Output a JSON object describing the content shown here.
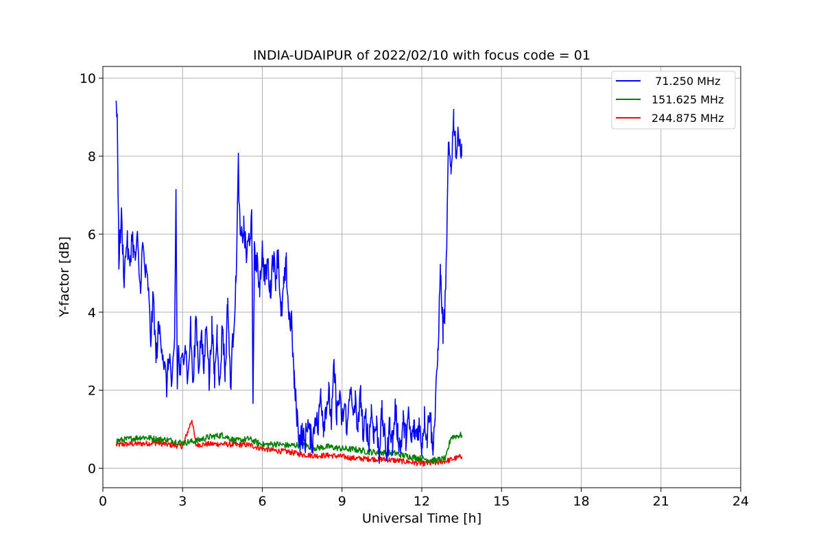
{
  "chart_data": {
    "type": "line",
    "title": "INDIA-UDAIPUR of 2022/02/10 with focus code = 01",
    "xlabel": "Universal Time [h]",
    "ylabel": "Y-factor [dB]",
    "xlim": [
      0,
      24
    ],
    "ylim": [
      -0.5,
      10.3
    ],
    "xticks": [
      0,
      3,
      6,
      9,
      12,
      15,
      18,
      21,
      24
    ],
    "yticks": [
      0,
      2,
      4,
      6,
      8,
      10
    ],
    "grid": true,
    "legend_position": "top-right",
    "series": [
      {
        "name": "  71.250 MHz",
        "color": "#0000ff",
        "x": [
          0.5,
          0.55,
          0.6,
          0.7,
          0.8,
          0.9,
          1.0,
          1.1,
          1.2,
          1.3,
          1.4,
          1.5,
          1.6,
          1.7,
          1.8,
          1.9,
          2.0,
          2.1,
          2.2,
          2.3,
          2.4,
          2.5,
          2.6,
          2.7,
          2.75,
          2.8,
          2.85,
          2.9,
          3.0,
          3.1,
          3.2,
          3.3,
          3.4,
          3.5,
          3.6,
          3.7,
          3.8,
          3.9,
          4.0,
          4.1,
          4.2,
          4.3,
          4.4,
          4.5,
          4.6,
          4.7,
          4.8,
          4.9,
          5.0,
          5.1,
          5.15,
          5.2,
          5.3,
          5.4,
          5.5,
          5.6,
          5.65,
          5.7,
          5.8,
          5.9,
          6.0,
          6.1,
          6.2,
          6.3,
          6.4,
          6.5,
          6.6,
          6.7,
          6.8,
          6.9,
          7.0,
          7.1,
          7.2,
          7.3,
          7.4,
          7.5,
          7.6,
          7.7,
          7.8,
          7.9,
          8.0,
          8.1,
          8.2,
          8.3,
          8.4,
          8.5,
          8.6,
          8.7,
          8.8,
          8.9,
          9.0,
          9.1,
          9.2,
          9.3,
          9.4,
          9.5,
          9.6,
          9.7,
          9.8,
          9.9,
          10.0,
          10.1,
          10.2,
          10.3,
          10.4,
          10.5,
          10.6,
          10.7,
          10.8,
          10.9,
          11.0,
          11.1,
          11.2,
          11.3,
          11.4,
          11.5,
          11.6,
          11.7,
          11.8,
          11.9,
          12.0,
          12.1,
          12.2,
          12.3,
          12.4,
          12.5,
          12.6,
          12.7,
          12.8,
          12.9,
          13.0,
          13.1,
          13.2,
          13.3,
          13.4,
          13.5
        ],
        "y": [
          9.3,
          8.6,
          5.4,
          6.4,
          4.9,
          5.9,
          5.1,
          6.0,
          5.3,
          5.8,
          4.6,
          5.7,
          5.0,
          4.7,
          3.3,
          4.4,
          2.8,
          3.6,
          3.3,
          2.7,
          2.1,
          3.0,
          2.0,
          3.2,
          7.1,
          2.2,
          3.1,
          2.4,
          2.8,
          3.3,
          2.2,
          3.6,
          2.0,
          4.0,
          2.6,
          3.4,
          2.5,
          3.9,
          2.2,
          3.6,
          2.3,
          3.5,
          2.1,
          3.7,
          2.4,
          4.3,
          2.1,
          3.4,
          4.6,
          7.8,
          6.2,
          5.8,
          6.2,
          5.4,
          5.9,
          6.3,
          1.7,
          5.5,
          5.2,
          4.7,
          5.6,
          4.8,
          5.3,
          4.5,
          5.5,
          4.9,
          5.6,
          3.8,
          4.6,
          5.2,
          3.9,
          3.7,
          2.2,
          1.4,
          0.7,
          0.9,
          0.6,
          1.2,
          0.8,
          0.7,
          1.4,
          1.0,
          2.0,
          1.1,
          1.6,
          1.9,
          1.2,
          2.6,
          1.4,
          1.8,
          1.2,
          1.6,
          1.0,
          2.2,
          1.3,
          1.7,
          1.0,
          1.9,
          0.8,
          1.3,
          0.6,
          1.5,
          0.9,
          1.1,
          0.4,
          1.4,
          0.8,
          0.3,
          1.2,
          0.6,
          1.5,
          0.9,
          0.5,
          1.2,
          0.8,
          1.3,
          0.7,
          1.0,
          0.9,
          1.1,
          0.6,
          1.3,
          0.8,
          1.6,
          0.5,
          1.3,
          2.9,
          5.0,
          3.5,
          4.4,
          8.1,
          7.7,
          9.0,
          8.1,
          8.6,
          8.0
        ],
        "noise": 0.35
      },
      {
        "name": "151.625 MHz",
        "color": "#008000",
        "x": [
          0.5,
          1.0,
          1.5,
          2.0,
          2.5,
          3.0,
          3.5,
          4.0,
          4.5,
          5.0,
          5.5,
          6.0,
          6.5,
          7.0,
          7.5,
          8.0,
          8.5,
          9.0,
          9.5,
          10.0,
          10.5,
          11.0,
          11.5,
          12.0,
          12.5,
          12.9,
          13.1,
          13.5
        ],
        "y": [
          0.7,
          0.75,
          0.8,
          0.75,
          0.72,
          0.65,
          0.7,
          0.8,
          0.85,
          0.7,
          0.75,
          0.6,
          0.62,
          0.58,
          0.6,
          0.52,
          0.55,
          0.5,
          0.48,
          0.42,
          0.4,
          0.38,
          0.3,
          0.25,
          0.2,
          0.25,
          0.8,
          0.85
        ],
        "noise": 0.08
      },
      {
        "name": "244.875 MHz",
        "color": "#ff0000",
        "x": [
          0.5,
          1.0,
          1.5,
          2.0,
          2.5,
          3.0,
          3.35,
          3.5,
          4.0,
          4.5,
          5.0,
          5.5,
          6.0,
          6.5,
          7.0,
          7.5,
          8.0,
          8.5,
          9.0,
          9.5,
          10.0,
          10.5,
          11.0,
          11.5,
          12.0,
          12.5,
          13.0,
          13.5
        ],
        "y": [
          0.6,
          0.62,
          0.63,
          0.65,
          0.6,
          0.56,
          1.25,
          0.6,
          0.62,
          0.62,
          0.6,
          0.6,
          0.5,
          0.45,
          0.42,
          0.35,
          0.32,
          0.33,
          0.3,
          0.25,
          0.24,
          0.23,
          0.2,
          0.16,
          0.12,
          0.13,
          0.2,
          0.3
        ],
        "noise": 0.07
      }
    ]
  }
}
